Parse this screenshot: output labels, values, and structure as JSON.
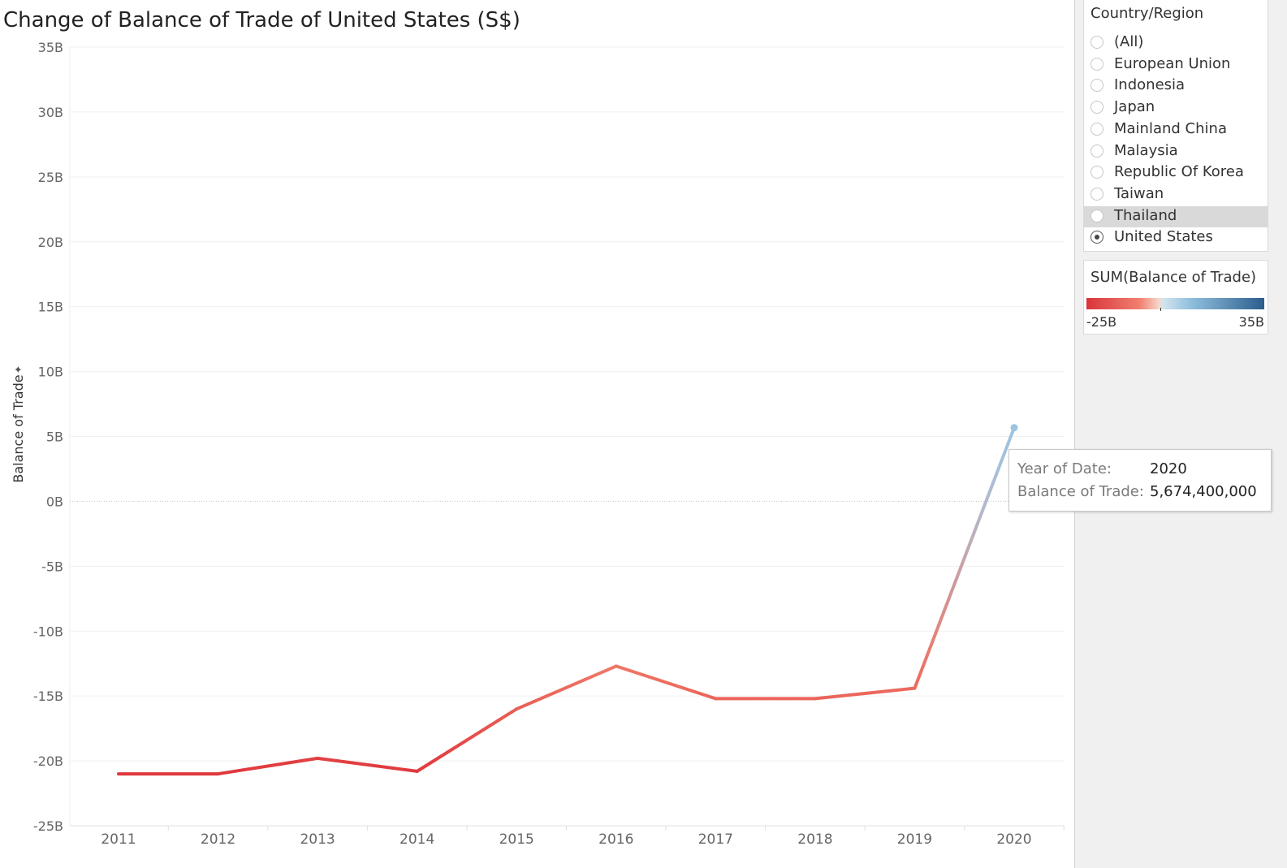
{
  "title": "Change of Balance of Trade of United States (S$)",
  "filter": {
    "title": "Country/Region",
    "items": [
      {
        "label": "(All)",
        "checked": false,
        "hover": false
      },
      {
        "label": "European Union",
        "checked": false,
        "hover": false
      },
      {
        "label": "Indonesia",
        "checked": false,
        "hover": false
      },
      {
        "label": "Japan",
        "checked": false,
        "hover": false
      },
      {
        "label": "Mainland China",
        "checked": false,
        "hover": false
      },
      {
        "label": "Malaysia",
        "checked": false,
        "hover": false
      },
      {
        "label": "Republic Of Korea",
        "checked": false,
        "hover": false
      },
      {
        "label": "Taiwan",
        "checked": false,
        "hover": false
      },
      {
        "label": "Thailand",
        "checked": false,
        "hover": true
      },
      {
        "label": "United States",
        "checked": true,
        "hover": false
      }
    ]
  },
  "legend": {
    "title": "SUM(Balance of Trade)",
    "min_label": "-25B",
    "max_label": "35B",
    "colors": [
      "#d9343b",
      "#f08070",
      "#f6d8cb",
      "#d2e4ee",
      "#8cbcdc",
      "#2c5d8c"
    ]
  },
  "tooltip": {
    "year_key": "Year of Date:",
    "year_value": "2020",
    "balance_key": "Balance of Trade:",
    "balance_value": "5,674,400,000"
  },
  "chart_data": {
    "type": "line",
    "title": "Change of Balance of Trade of United States (S$)",
    "xlabel": "",
    "ylabel": "Balance of Trade",
    "categories": [
      "2011",
      "2012",
      "2013",
      "2014",
      "2015",
      "2016",
      "2017",
      "2018",
      "2019",
      "2020"
    ],
    "series": [
      {
        "values": [
          -21.0,
          -21.0,
          -19.8,
          -20.8,
          -16.0,
          -12.7,
          -15.2,
          -15.2,
          -14.4,
          5.6744
        ]
      }
    ],
    "y_unit": "B",
    "ylim": [
      -25,
      35
    ],
    "y_ticks": [
      35,
      30,
      25,
      20,
      15,
      10,
      5,
      0,
      -5,
      -10,
      -15,
      -20,
      -25
    ],
    "y_tick_labels": [
      "35B",
      "30B",
      "25B",
      "20B",
      "15B",
      "10B",
      "5B",
      "0B",
      "-5B",
      "-10B",
      "-15B",
      "-20B",
      "-25B"
    ],
    "grid": true,
    "color_scale": {
      "min": -25,
      "max": 35,
      "colors": [
        "#e0383d",
        "#ef7565",
        "#b0bdd0",
        "#9cc4e2"
      ]
    }
  }
}
